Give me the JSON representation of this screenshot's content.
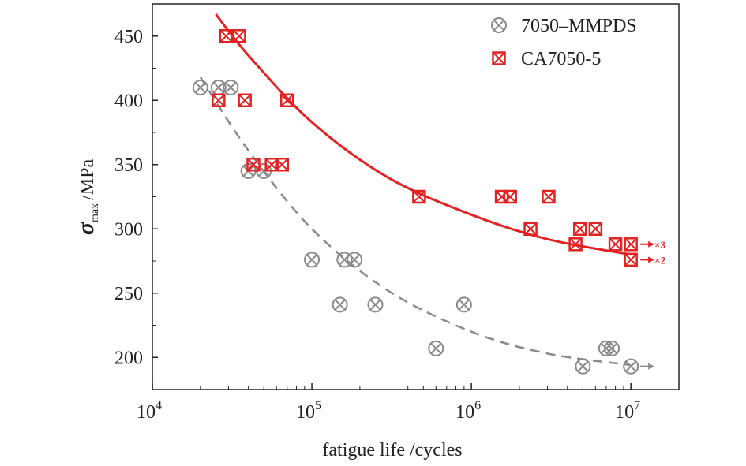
{
  "chart_data": {
    "type": "scatter",
    "title": "",
    "xlabel": "fatigue life /cycles",
    "ylabel": {
      "symbol": "σ",
      "subscript": "max",
      "unit": "/MPa"
    },
    "xscale": "log",
    "xlim": [
      10000,
      20000000
    ],
    "ylim": [
      175,
      475
    ],
    "x_ticks": [
      {
        "value": 10000,
        "base": "10",
        "exp": "4"
      },
      {
        "value": 100000,
        "base": "10",
        "exp": "5"
      },
      {
        "value": 1000000,
        "base": "10",
        "exp": "6"
      },
      {
        "value": 10000000,
        "base": "10",
        "exp": "7"
      }
    ],
    "y_ticks": [
      200,
      250,
      300,
      350,
      400,
      450
    ],
    "grid": false,
    "legend_position": "top-right",
    "series": [
      {
        "name": "7050–MMPDS",
        "color": "#8a8a8a",
        "marker": "circle-x",
        "points": [
          [
            20000,
            410
          ],
          [
            26000,
            410
          ],
          [
            31000,
            410
          ],
          [
            40000,
            345
          ],
          [
            50000,
            345
          ],
          [
            100000,
            276
          ],
          [
            160000,
            276
          ],
          [
            185000,
            276
          ],
          [
            150000,
            241
          ],
          [
            250000,
            241
          ],
          [
            900000,
            241
          ],
          [
            600000,
            207
          ],
          [
            7000000,
            207
          ],
          [
            7600000,
            207
          ],
          [
            5000000,
            193
          ],
          [
            10000000,
            193
          ]
        ],
        "fit": {
          "style": "dashed",
          "points": [
            [
              20000,
              418
            ],
            [
              40000,
              361
            ],
            [
              100000,
              300
            ],
            [
              300000,
              252
            ],
            [
              1000000,
              220
            ],
            [
              3000000,
              203
            ],
            [
              10000000,
              194
            ]
          ]
        },
        "runouts": [
          {
            "x": 10000000,
            "y": 193,
            "count_label": ""
          }
        ]
      },
      {
        "name": "CA7050-5",
        "color": "#e32222",
        "marker": "square-x",
        "points": [
          [
            29000,
            450
          ],
          [
            35000,
            450
          ],
          [
            26000,
            400
          ],
          [
            38000,
            400
          ],
          [
            70000,
            400
          ],
          [
            43000,
            350
          ],
          [
            56000,
            350
          ],
          [
            65000,
            350
          ],
          [
            470000,
            325
          ],
          [
            1550000,
            325
          ],
          [
            1750000,
            325
          ],
          [
            3050000,
            325
          ],
          [
            2350000,
            300
          ],
          [
            4800000,
            300
          ],
          [
            6000000,
            300
          ],
          [
            4500000,
            288
          ],
          [
            8000000,
            288
          ],
          [
            10000000,
            288
          ],
          [
            10000000,
            276
          ]
        ],
        "fit": {
          "style": "solid",
          "points": [
            [
              25000,
              467
            ],
            [
              40000,
              435
            ],
            [
              100000,
              383
            ],
            [
              300000,
              340
            ],
            [
              1000000,
              311
            ],
            [
              3000000,
              292
            ],
            [
              10000000,
              280
            ]
          ]
        },
        "runouts": [
          {
            "x": 10000000,
            "y": 288,
            "count_label": "×3"
          },
          {
            "x": 10000000,
            "y": 276,
            "count_label": "×2"
          }
        ]
      }
    ]
  }
}
